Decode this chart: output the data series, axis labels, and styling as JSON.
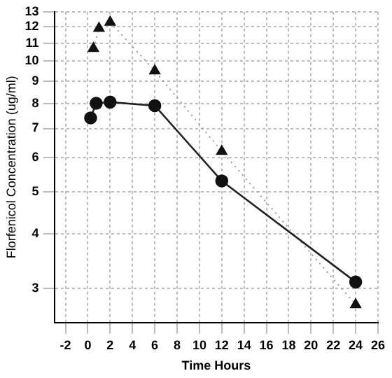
{
  "chart_data": {
    "type": "line",
    "xlabel": "Time Hours",
    "ylabel": "Florfenicol Concentration (ug/ml)",
    "log": "y",
    "grid": true,
    "legend": false,
    "xlim": [
      -3,
      26
    ],
    "xticks": [
      -2,
      0,
      2,
      4,
      6,
      8,
      10,
      12,
      14,
      16,
      18,
      20,
      22,
      24,
      26
    ],
    "ylim": [
      2.5,
      13
    ],
    "yticks": [
      3,
      4,
      5,
      6,
      7,
      8,
      9,
      10,
      11,
      12,
      13
    ],
    "series": [
      {
        "color": "#222222",
        "marker": "circle",
        "line_style": "solid",
        "x": [
          0.25,
          0.75,
          2,
          6,
          12,
          24
        ],
        "values": [
          7.4,
          8.0,
          8.05,
          7.9,
          5.3,
          3.1
        ]
      },
      {
        "color": "#9a9a9a",
        "marker": "triangle",
        "line_style": "dotted",
        "x": [
          0.5,
          1,
          2,
          6,
          12,
          24
        ],
        "values": [
          10.7,
          11.9,
          12.3,
          9.5,
          6.2,
          2.75
        ]
      }
    ]
  }
}
